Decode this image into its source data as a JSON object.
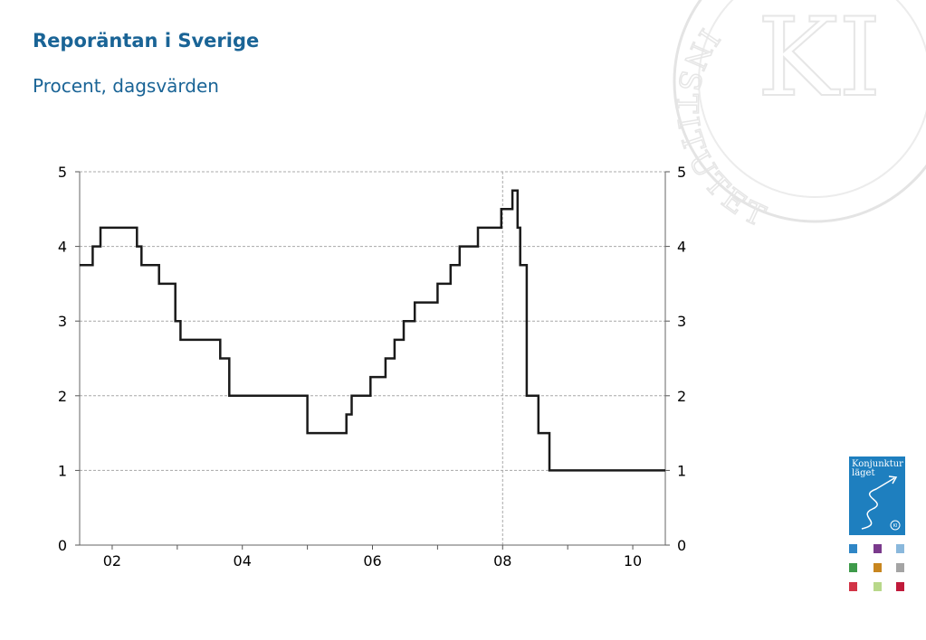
{
  "title": "Reporäntan i Sverige",
  "subtitle": "Procent, dagsvärden",
  "watermark": {
    "text": "INSTITUTET",
    "monogram": "KI"
  },
  "logo": {
    "line1": "Konjunktur",
    "line2": "läget",
    "badge": "KI",
    "squares": [
      "#2f86c6",
      "#7a3a8c",
      "#8ab8dc",
      "#3e9a4a",
      "#c8861f",
      "#a4a4a4",
      "#d23346",
      "#b8d88a",
      "#c01a3a"
    ]
  },
  "chart_data": {
    "type": "line",
    "step": true,
    "xlim": [
      2001.5,
      2010.5
    ],
    "ylim": [
      0,
      5
    ],
    "yticks": [
      0,
      1,
      2,
      3,
      4,
      5
    ],
    "ytick_labels": [
      "0",
      "1",
      "2",
      "3",
      "4",
      "5"
    ],
    "ytick_labels_right": [
      "0",
      "1",
      "2",
      "3",
      "4",
      "5"
    ],
    "xtick_labels": [
      {
        "x": 2002,
        "label": "02"
      },
      {
        "x": 2004,
        "label": "04"
      },
      {
        "x": 2006,
        "label": "06"
      },
      {
        "x": 2008,
        "label": "08"
      },
      {
        "x": 2010,
        "label": "10"
      }
    ],
    "year_ticks": [
      2002,
      2003,
      2004,
      2005,
      2006,
      2007,
      2008,
      2009,
      2010
    ],
    "grid_horizontal": true,
    "grid_vertical_x": [
      2008
    ],
    "series": [
      {
        "color": "#1a1a1a",
        "points": [
          [
            2001.5,
            3.75
          ],
          [
            2001.7,
            4.0
          ],
          [
            2001.82,
            4.25
          ],
          [
            2002.38,
            4.0
          ],
          [
            2002.45,
            3.75
          ],
          [
            2002.72,
            3.5
          ],
          [
            2002.97,
            3.0
          ],
          [
            2003.05,
            2.75
          ],
          [
            2003.66,
            2.5
          ],
          [
            2003.8,
            2.0
          ],
          [
            2005.0,
            1.5
          ],
          [
            2005.6,
            1.75
          ],
          [
            2005.68,
            2.0
          ],
          [
            2005.97,
            2.25
          ],
          [
            2006.2,
            2.5
          ],
          [
            2006.34,
            2.75
          ],
          [
            2006.48,
            3.0
          ],
          [
            2006.65,
            3.25
          ],
          [
            2007.0,
            3.5
          ],
          [
            2007.2,
            3.75
          ],
          [
            2007.34,
            4.0
          ],
          [
            2007.62,
            4.25
          ],
          [
            2007.98,
            4.5
          ],
          [
            2008.15,
            4.75
          ],
          [
            2008.23,
            4.25
          ],
          [
            2008.27,
            3.75
          ],
          [
            2008.37,
            2.0
          ],
          [
            2008.55,
            1.5
          ],
          [
            2008.72,
            1.0
          ],
          [
            2010.5,
            1.0
          ]
        ]
      }
    ]
  }
}
